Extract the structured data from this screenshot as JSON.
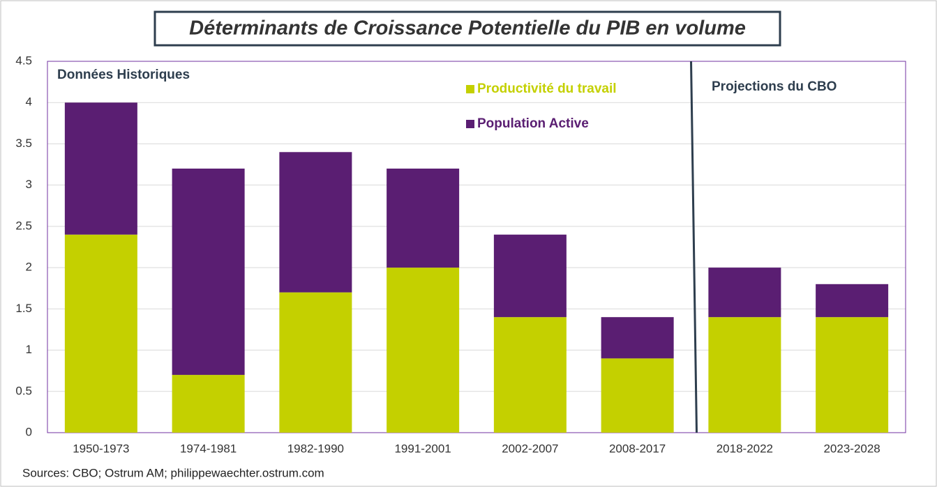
{
  "chart_data": {
    "type": "stacked_bar",
    "title": "Déterminants de Croissance Potentielle du PIB en volume",
    "annotations": [
      "Données Historiques",
      "Projections du CBO"
    ],
    "source": "Sources: CBO; Ostrum AM; philippewaechter.ostrum.com",
    "categories": [
      "1950-1973",
      "1974-1981",
      "1982-1990",
      "1991-2001",
      "2002-2007",
      "2008-2017",
      "2018-2022",
      "2023-2028"
    ],
    "series": [
      {
        "name": "Productivité du travail",
        "color": "#c4d000",
        "values": [
          2.4,
          0.7,
          1.7,
          2.0,
          1.4,
          0.9,
          1.4,
          1.4
        ]
      },
      {
        "name": "Population Active",
        "color": "#5a1e72",
        "values": [
          1.6,
          2.5,
          1.7,
          1.2,
          1.0,
          0.5,
          0.6,
          0.4
        ]
      }
    ],
    "ylim": [
      0,
      4.5
    ],
    "yticks": [
      0,
      0.5,
      1,
      1.5,
      2,
      2.5,
      3,
      3.5,
      4,
      4.5
    ],
    "grid": true
  }
}
